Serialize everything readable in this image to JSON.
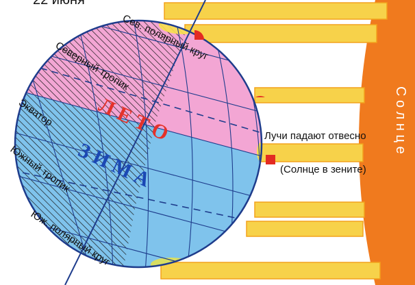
{
  "date_label": "22 июня",
  "labels": {
    "arctic_circle": "Сев. полярный круг",
    "tropic_cancer": "Северный тропик",
    "equator": "Экватор",
    "tropic_capricorn": "Южный тропик",
    "antarctic_circle": "Юж. полярный круг",
    "summer": "Л Е Т О",
    "winter": "З И М А",
    "rays_vertical": "Лучи падают отвесно",
    "sun_zenith": "(Солнце в зените)",
    "sun": "С о л н ц е"
  },
  "colors": {
    "sun": "#f07a1e",
    "ray": "#f7d24a",
    "ray_edge": "#f3a21c",
    "summer": "#f3a6d4",
    "winter": "#7fc3ec",
    "globe_outline": "#1e3c8c",
    "grid": "#1e3c8c",
    "marker": "#e32b22",
    "summer_text": "#e4322a",
    "winter_text": "#1b48b4"
  }
}
